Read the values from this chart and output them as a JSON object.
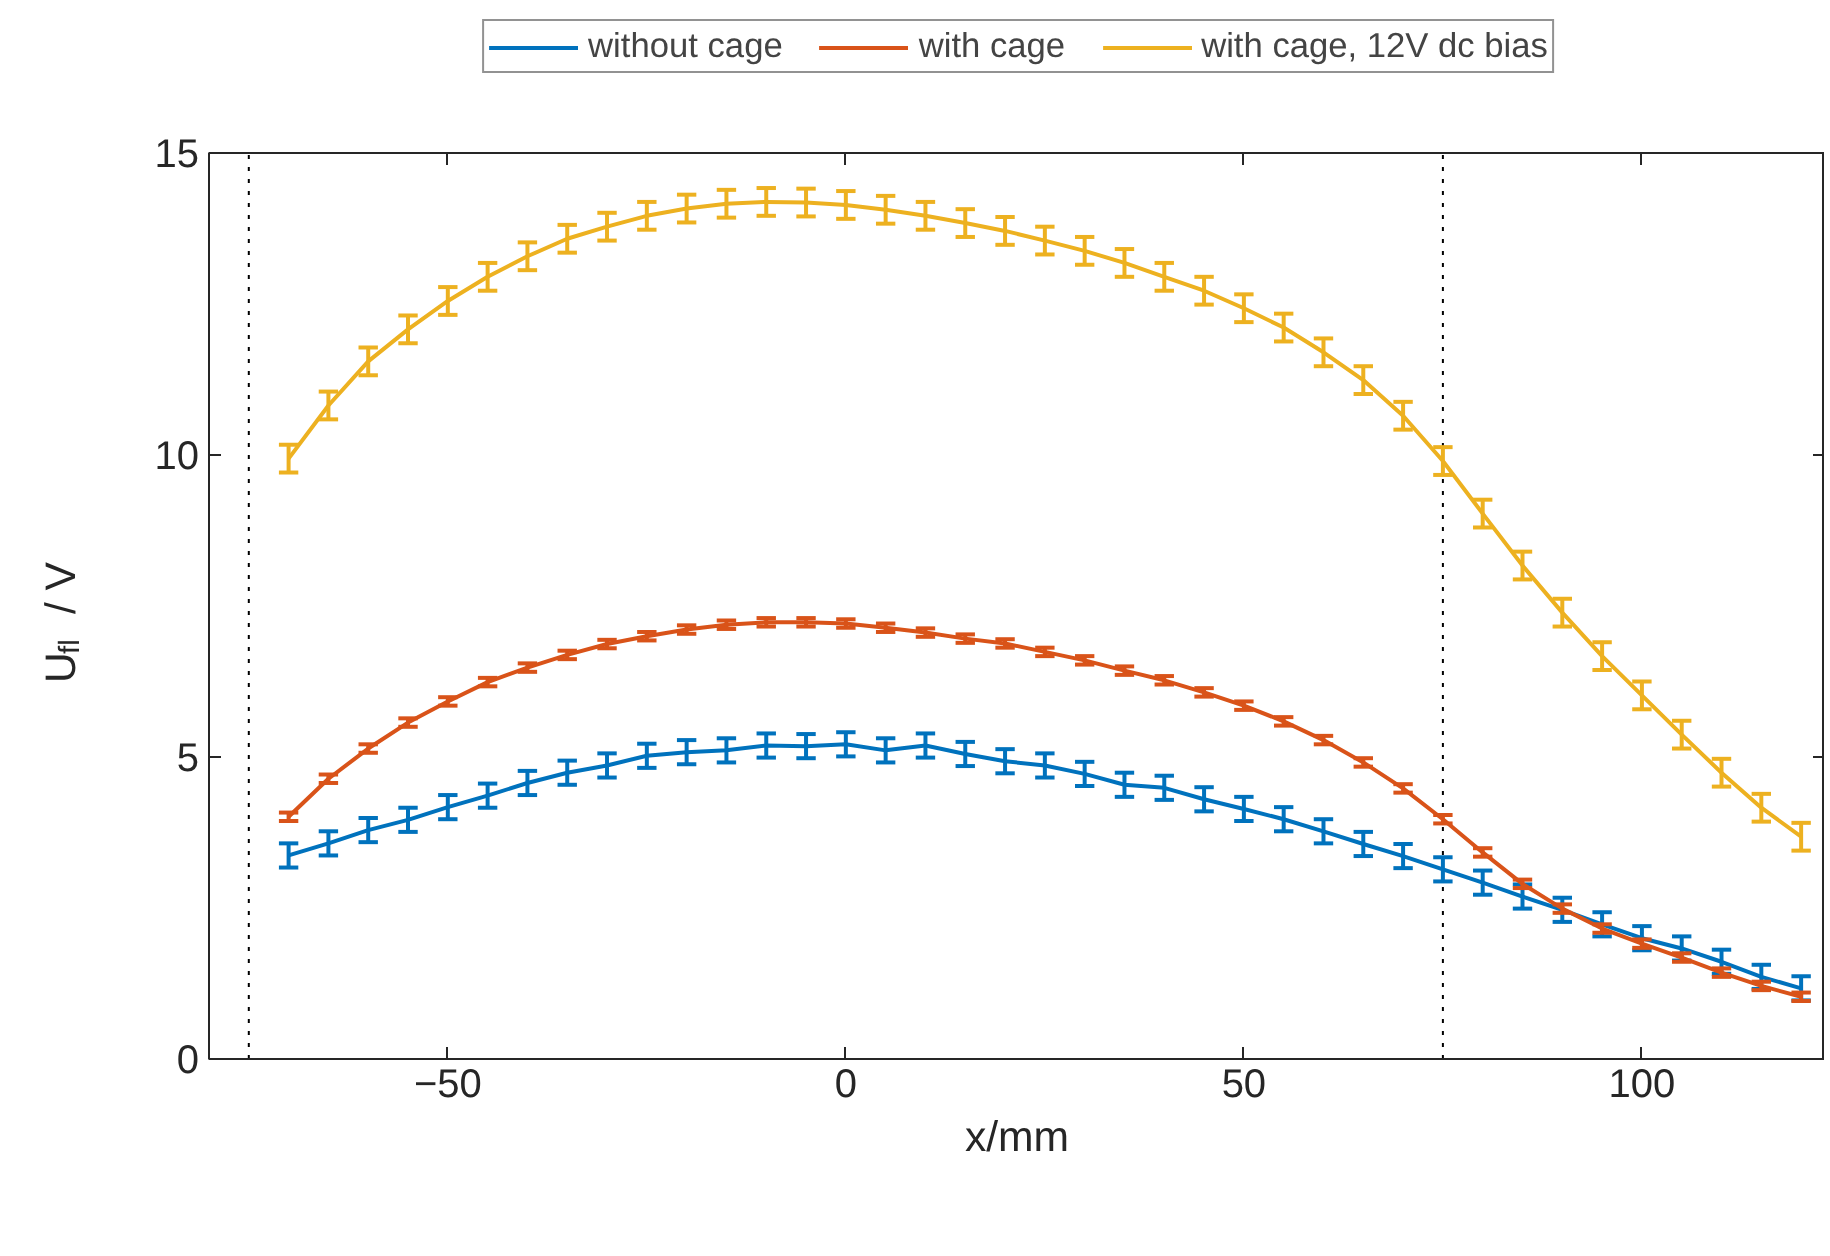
{
  "chart_data": {
    "type": "line",
    "xlabel": "x/mm",
    "ylabel": "U$_{fl}$ / V",
    "x": [
      -70,
      -65,
      -60,
      -55,
      -50,
      -45,
      -40,
      -35,
      -30,
      -25,
      -20,
      -15,
      -10,
      -5,
      0,
      5,
      10,
      15,
      20,
      25,
      30,
      35,
      40,
      45,
      50,
      55,
      60,
      65,
      70,
      75,
      80,
      85,
      90,
      95,
      100,
      105,
      110,
      115,
      120
    ],
    "series": [
      {
        "name": "without cage",
        "color": "#0072bd",
        "values": [
          3.37,
          3.57,
          3.79,
          3.96,
          4.17,
          4.36,
          4.57,
          4.74,
          4.86,
          5.02,
          5.08,
          5.11,
          5.19,
          5.18,
          5.21,
          5.11,
          5.19,
          5.05,
          4.93,
          4.86,
          4.72,
          4.54,
          4.49,
          4.3,
          4.14,
          3.97,
          3.77,
          3.56,
          3.36,
          3.14,
          2.92,
          2.69,
          2.47,
          2.23,
          2.0,
          1.83,
          1.61,
          1.36,
          1.17
        ],
        "errors": [
          0.2,
          0.2,
          0.2,
          0.2,
          0.2,
          0.2,
          0.2,
          0.2,
          0.2,
          0.2,
          0.2,
          0.2,
          0.2,
          0.2,
          0.2,
          0.2,
          0.2,
          0.2,
          0.2,
          0.2,
          0.2,
          0.2,
          0.2,
          0.2,
          0.2,
          0.2,
          0.2,
          0.2,
          0.2,
          0.2,
          0.2,
          0.2,
          0.2,
          0.2,
          0.2,
          0.2,
          0.2,
          0.2,
          0.2
        ]
      },
      {
        "name": "with cage",
        "color": "#d95319",
        "values": [
          4.01,
          4.64,
          5.14,
          5.57,
          5.92,
          6.24,
          6.48,
          6.69,
          6.87,
          7.0,
          7.11,
          7.19,
          7.23,
          7.23,
          7.21,
          7.14,
          7.06,
          6.96,
          6.88,
          6.74,
          6.6,
          6.43,
          6.27,
          6.07,
          5.85,
          5.59,
          5.28,
          4.91,
          4.48,
          3.97,
          3.42,
          2.9,
          2.49,
          2.16,
          1.91,
          1.68,
          1.43,
          1.21,
          1.03
        ],
        "errors": [
          0.07,
          0.07,
          0.07,
          0.07,
          0.07,
          0.07,
          0.07,
          0.07,
          0.07,
          0.07,
          0.07,
          0.07,
          0.07,
          0.07,
          0.07,
          0.07,
          0.07,
          0.07,
          0.07,
          0.07,
          0.07,
          0.07,
          0.07,
          0.07,
          0.07,
          0.07,
          0.07,
          0.07,
          0.07,
          0.07,
          0.07,
          0.07,
          0.07,
          0.07,
          0.07,
          0.07,
          0.07,
          0.07,
          0.07
        ]
      },
      {
        "name": "with cage, 12V dc bias",
        "color": "#edb120",
        "values": [
          9.94,
          10.82,
          11.55,
          12.08,
          12.55,
          12.95,
          13.29,
          13.58,
          13.78,
          13.96,
          14.08,
          14.16,
          14.19,
          14.18,
          14.14,
          14.06,
          13.96,
          13.84,
          13.71,
          13.55,
          13.38,
          13.18,
          12.95,
          12.72,
          12.43,
          12.11,
          11.7,
          11.24,
          10.65,
          9.9,
          9.03,
          8.17,
          7.39,
          6.67,
          6.02,
          5.37,
          4.74,
          4.16,
          3.68
        ],
        "errors": [
          0.23,
          0.23,
          0.23,
          0.23,
          0.23,
          0.23,
          0.23,
          0.23,
          0.23,
          0.23,
          0.23,
          0.23,
          0.23,
          0.23,
          0.23,
          0.23,
          0.23,
          0.23,
          0.23,
          0.23,
          0.23,
          0.23,
          0.23,
          0.23,
          0.23,
          0.23,
          0.23,
          0.23,
          0.23,
          0.23,
          0.23,
          0.23,
          0.23,
          0.23,
          0.23,
          0.23,
          0.23,
          0.23,
          0.23
        ]
      }
    ],
    "xlim": [
      -80,
      123
    ],
    "ylim": [
      0,
      15
    ],
    "xticks": [
      -50,
      0,
      50,
      100
    ],
    "yticks": [
      0,
      5,
      10,
      15
    ],
    "ref_lines": [
      {
        "axis": "x",
        "value": -75,
        "color": "#000000",
        "line_style": "dotted"
      },
      {
        "axis": "x",
        "value": 75,
        "color": "#000000",
        "line_style": "dotted"
      }
    ],
    "grid": false,
    "legend": "top",
    "marker": "none",
    "line_style": "solid"
  }
}
